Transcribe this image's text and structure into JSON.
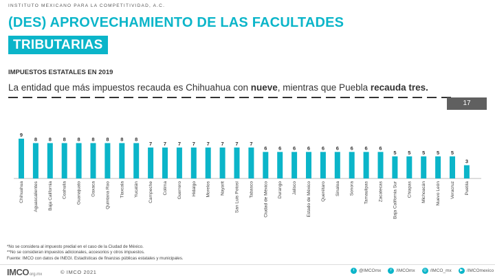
{
  "header": {
    "org": "INSTITUTO MEXICANO PARA LA COMPETITIVIDAD, A.C.",
    "title_line1": "(DES) APROVECHAMIENTO DE LAS FACULTADES",
    "title_line2": "TRIBUTARIAS",
    "subtitle": "IMPUESTOS ESTATALES EN 2019",
    "lead_1": "La entidad que más impuestos recauda es Chihuahua con ",
    "lead_b1": "nueve",
    "lead_2": ", mientras que Puebla ",
    "lead_b2": "recauda tres."
  },
  "page_number": "17",
  "colors": {
    "accent": "#0bb5c9",
    "dark": "#333333",
    "page_box": "#606060"
  },
  "chart_data": {
    "type": "bar",
    "categories": [
      "Chihuahua",
      "Aguascalientes",
      "Baja California",
      "Coahuila",
      "Guanajuato",
      "Oaxaca",
      "Quintana Roo",
      "Tlaxcala",
      "Yucatán",
      "Campeche",
      "Colima",
      "Guerrero",
      "Hidalgo",
      "Morelos",
      "Nayarit",
      "San Luis Potosí",
      "Tabasco",
      "Ciudad de México",
      "Durango",
      "Jalisco",
      "Estado de México",
      "Querétaro",
      "Sinaloa",
      "Sonora",
      "Tamaulipas",
      "Zacatecas",
      "Baja California Sur",
      "Chiapas",
      "Michoacán",
      "Nuevo León",
      "Veracruz",
      "Puebla"
    ],
    "values": [
      9,
      8,
      8,
      8,
      8,
      8,
      8,
      8,
      8,
      7,
      7,
      7,
      7,
      7,
      7,
      7,
      7,
      6,
      6,
      6,
      6,
      6,
      6,
      6,
      6,
      6,
      5,
      5,
      5,
      5,
      5,
      3
    ],
    "ylim": [
      0,
      9
    ],
    "grid": false,
    "bar_color": "#0bb5c9"
  },
  "footnotes": [
    "*No se considera al impuesto predial en el caso de la Ciudad de México.",
    "**No se consideran impuestos adicionales, accesorios y otros impuestos.",
    "Fuente: IMCO con datos de INEGI. Estadísticas de finanzas públicas estatales y municipales."
  ],
  "footer": {
    "logo": "IMCO",
    "logo_domain": "org.mx",
    "copyright": "© IMCO 2021",
    "socials": [
      {
        "icon": "twitter-icon",
        "glyph": "t",
        "label": "@IMCOmx"
      },
      {
        "icon": "facebook-icon",
        "glyph": "f",
        "label": "/IMCOmx"
      },
      {
        "icon": "instagram-icon",
        "glyph": "◎",
        "label": "/IMCO_mx"
      },
      {
        "icon": "youtube-icon",
        "glyph": "▶",
        "label": "/IMCOmexico"
      }
    ]
  }
}
